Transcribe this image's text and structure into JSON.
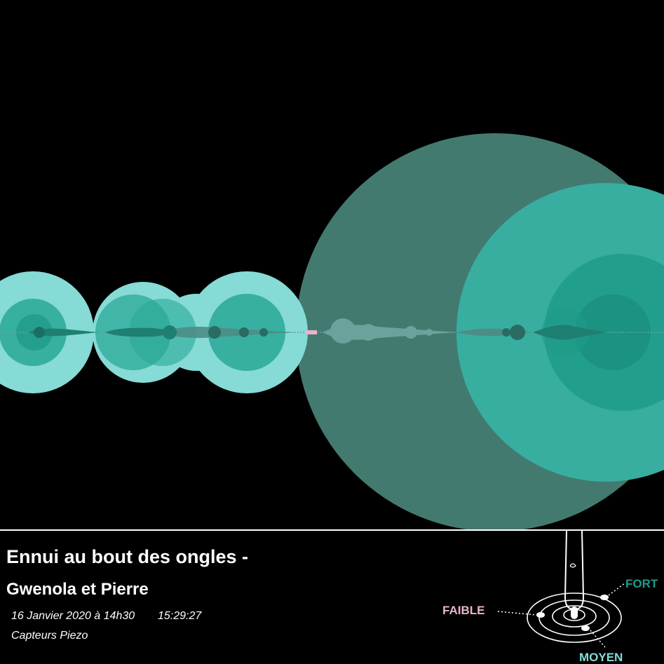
{
  "title_line1": "Ennui au bout des ongles -",
  "title_line2": "Gwenola et Pierre",
  "date": "16 Janvier 2020 à 14h30",
  "time": "15:29:27",
  "sensor": "Capteurs Piezo",
  "legend": {
    "weak": "FAIBLE",
    "medium": "MOYEN",
    "strong": "FORT"
  },
  "colors": {
    "background": "#000000",
    "weak": "#e8b4cc",
    "medium": "#86dbd6",
    "strong": "#1f9b8a",
    "dark_teal": "#437a70"
  }
}
